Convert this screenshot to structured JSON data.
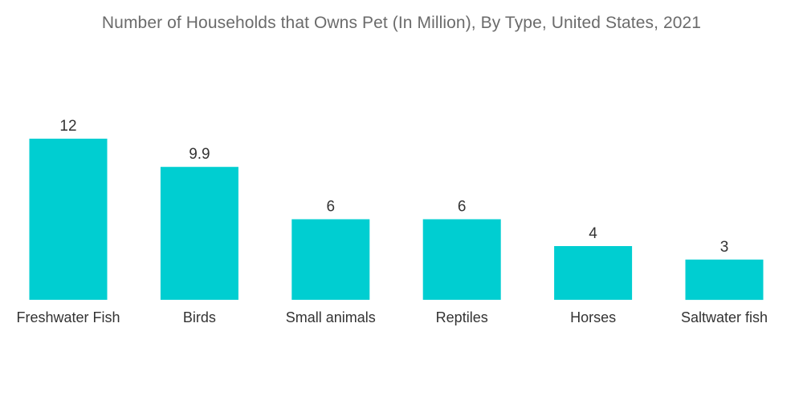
{
  "chart_data": {
    "type": "bar",
    "title": "Number of Households that Owns Pet (In Million), By Type, United States, 2021",
    "categories": [
      "Freshwater Fish",
      "Birds",
      "Small animals",
      "Reptiles",
      "Horses",
      "Saltwater fish"
    ],
    "values": [
      12,
      9.9,
      6,
      6,
      4,
      3
    ],
    "value_labels": [
      "12",
      "9.9",
      "6",
      "6",
      "4",
      "3"
    ],
    "xlabel": "",
    "ylabel": "",
    "ylim": [
      0,
      12
    ],
    "grid": false,
    "legend": "none",
    "bar_color": "#00CED1"
  }
}
